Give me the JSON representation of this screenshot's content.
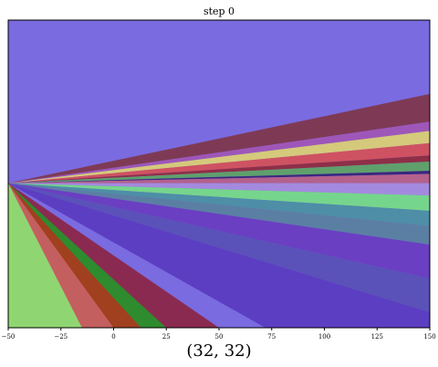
{
  "chart_data": {
    "type": "area",
    "title": "step 0",
    "xlabel": "",
    "ylabel": "",
    "xlim": [
      -50,
      150
    ],
    "x_ticks": [
      -50,
      -25,
      0,
      25,
      50,
      75,
      100,
      125,
      150
    ],
    "x_tick_labels": [
      "−50",
      "−25",
      "0",
      "25",
      "50",
      "75",
      "100",
      "125",
      "150"
    ],
    "caption": "(32, 32)",
    "grid": false,
    "background_color": "#7a6be0",
    "fan_origin": [
      -50,
      0.53
    ],
    "region_edges_at_right_edge": [
      0.24,
      0.33,
      0.36,
      0.4,
      0.44,
      0.46,
      0.49,
      0.5,
      0.53,
      0.57,
      0.62,
      0.67,
      0.73,
      0.84,
      0.95
    ],
    "region_colors": [
      "#7e3a55",
      "#9e57b9",
      "#d5c97b",
      "#cf5262",
      "#8e2f48",
      "#5fa06c",
      "#3a277f",
      "#b4618c",
      "#a48adf",
      "#76d58c",
      "#4e8ea6",
      "#5b7fa3",
      "#6a3fc2",
      "#5a52b8",
      "#6c3fc8"
    ],
    "bottom_region_edges_at_x": [
      -15,
      0,
      13,
      25,
      50,
      72
    ],
    "bottom_region_colors": [
      "#8fd672",
      "#c35f5f",
      "#a0401f",
      "#2e8b2e",
      "#8b2a50",
      "#5c3ec2"
    ]
  }
}
